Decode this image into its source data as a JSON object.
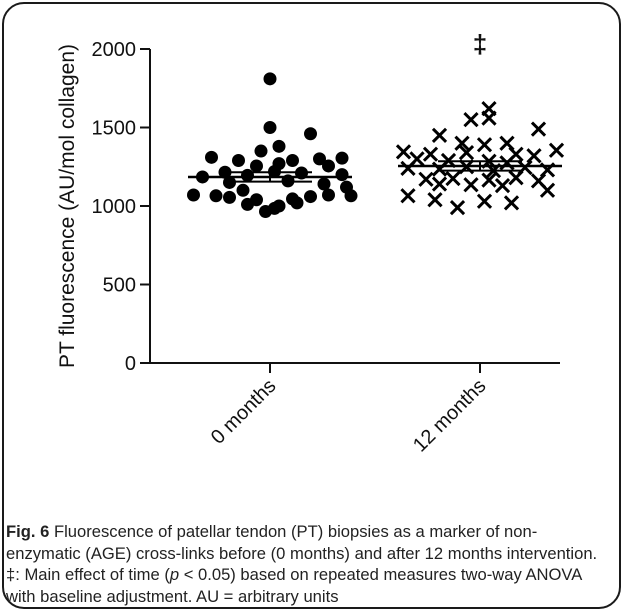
{
  "chart_data": {
    "type": "scatter",
    "ylabel": "PT fluorescence (AU/mol collagen)",
    "ylim": [
      0,
      2000
    ],
    "yticks": [
      0,
      500,
      1000,
      1500,
      2000
    ],
    "categories": [
      "0 months",
      "12 months"
    ],
    "significance_marker": "‡",
    "groups": [
      {
        "category": "0 months",
        "marker": "circle",
        "mean": 1185,
        "sem_low": 1155,
        "sem_high": 1215,
        "points": [
          {
            "offset": 0,
            "value": 1810
          },
          {
            "offset": 0,
            "value": 1500
          },
          {
            "offset": 0.45,
            "value": 1460
          },
          {
            "offset": 0.1,
            "value": 1380
          },
          {
            "offset": -0.1,
            "value": 1350
          },
          {
            "offset": -0.65,
            "value": 1310
          },
          {
            "offset": -0.35,
            "value": 1290
          },
          {
            "offset": 0.55,
            "value": 1300
          },
          {
            "offset": 0.8,
            "value": 1305
          },
          {
            "offset": 0.25,
            "value": 1290
          },
          {
            "offset": -0.15,
            "value": 1255
          },
          {
            "offset": 0.1,
            "value": 1270
          },
          {
            "offset": 0.65,
            "value": 1255
          },
          {
            "offset": -0.5,
            "value": 1215
          },
          {
            "offset": -0.25,
            "value": 1195
          },
          {
            "offset": 0.05,
            "value": 1220
          },
          {
            "offset": 0.35,
            "value": 1210
          },
          {
            "offset": 0.8,
            "value": 1200
          },
          {
            "offset": -0.75,
            "value": 1185
          },
          {
            "offset": -0.45,
            "value": 1150
          },
          {
            "offset": 0.2,
            "value": 1160
          },
          {
            "offset": 0.6,
            "value": 1140
          },
          {
            "offset": 0.85,
            "value": 1120
          },
          {
            "offset": -0.3,
            "value": 1100
          },
          {
            "offset": -0.85,
            "value": 1070
          },
          {
            "offset": -0.6,
            "value": 1065
          },
          {
            "offset": -0.45,
            "value": 1055
          },
          {
            "offset": -0.15,
            "value": 1040
          },
          {
            "offset": 0.25,
            "value": 1045
          },
          {
            "offset": 0.45,
            "value": 1060
          },
          {
            "offset": 0.65,
            "value": 1070
          },
          {
            "offset": 0.9,
            "value": 1065
          },
          {
            "offset": -0.25,
            "value": 1010
          },
          {
            "offset": 0.1,
            "value": 1000
          },
          {
            "offset": 0.3,
            "value": 1020
          },
          {
            "offset": -0.05,
            "value": 965
          },
          {
            "offset": 0.05,
            "value": 985
          }
        ]
      },
      {
        "category": "12 months",
        "marker": "x",
        "mean": 1255,
        "sem_low": 1225,
        "sem_high": 1285,
        "points": [
          {
            "offset": 0.1,
            "value": 1620
          },
          {
            "offset": -0.1,
            "value": 1550
          },
          {
            "offset": 0.1,
            "value": 1560
          },
          {
            "offset": 0.65,
            "value": 1490
          },
          {
            "offset": -0.45,
            "value": 1450
          },
          {
            "offset": -0.2,
            "value": 1400
          },
          {
            "offset": 0.05,
            "value": 1390
          },
          {
            "offset": 0.3,
            "value": 1400
          },
          {
            "offset": -0.85,
            "value": 1345
          },
          {
            "offset": -0.55,
            "value": 1330
          },
          {
            "offset": -0.15,
            "value": 1340
          },
          {
            "offset": 0.4,
            "value": 1330
          },
          {
            "offset": 0.6,
            "value": 1320
          },
          {
            "offset": 0.85,
            "value": 1355
          },
          {
            "offset": -0.7,
            "value": 1300
          },
          {
            "offset": -0.35,
            "value": 1290
          },
          {
            "offset": 0.1,
            "value": 1285
          },
          {
            "offset": 0.3,
            "value": 1275
          },
          {
            "offset": -0.8,
            "value": 1240
          },
          {
            "offset": -0.45,
            "value": 1235
          },
          {
            "offset": -0.15,
            "value": 1250
          },
          {
            "offset": 0.15,
            "value": 1225
          },
          {
            "offset": 0.5,
            "value": 1245
          },
          {
            "offset": 0.75,
            "value": 1230
          },
          {
            "offset": -0.6,
            "value": 1170
          },
          {
            "offset": -0.3,
            "value": 1175
          },
          {
            "offset": 0.1,
            "value": 1165
          },
          {
            "offset": 0.4,
            "value": 1180
          },
          {
            "offset": 0.65,
            "value": 1160
          },
          {
            "offset": -0.45,
            "value": 1140
          },
          {
            "offset": -0.1,
            "value": 1135
          },
          {
            "offset": 0.25,
            "value": 1130
          },
          {
            "offset": -0.8,
            "value": 1065
          },
          {
            "offset": -0.5,
            "value": 1040
          },
          {
            "offset": 0.05,
            "value": 1030
          },
          {
            "offset": 0.35,
            "value": 1020
          },
          {
            "offset": 0.75,
            "value": 1100
          },
          {
            "offset": -0.25,
            "value": 990
          }
        ]
      }
    ]
  },
  "caption": {
    "label": "Fig. 6",
    "text_1": " Fluorescence of patellar tendon (PT) biopsies as a marker of non-enzymatic (AGE) cross-links before (0 months) and after 12 months intervention. ‡: Main effect of time (",
    "p_symbol": "p",
    "text_2": " < 0.05) based on repeated measures two-way ANOVA with baseline adjustment. AU = arbitrary units"
  }
}
